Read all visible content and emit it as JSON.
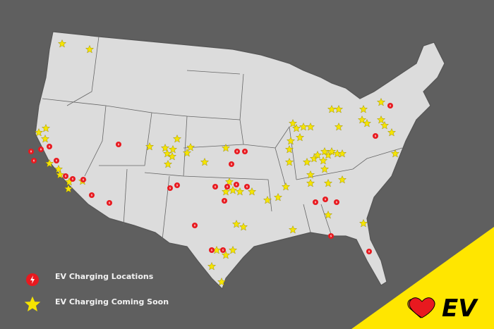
{
  "legend": {
    "charging_locations": "EV Charging Locations",
    "coming_soon": "EV Charging Coming Soon"
  },
  "logo": {
    "text": "EV"
  },
  "colors": {
    "background": "#5f5f5f",
    "land": "#dcdcdc",
    "border": "#555555",
    "charger_marker": "#e8191f",
    "coming_soon_marker": "#f5e400",
    "corner_band": "#ffe600"
  },
  "icons": {
    "charger": "lightning-bolt-in-red-circle",
    "coming_soon": "yellow-star",
    "logo": "heart-ev-logo"
  }
}
